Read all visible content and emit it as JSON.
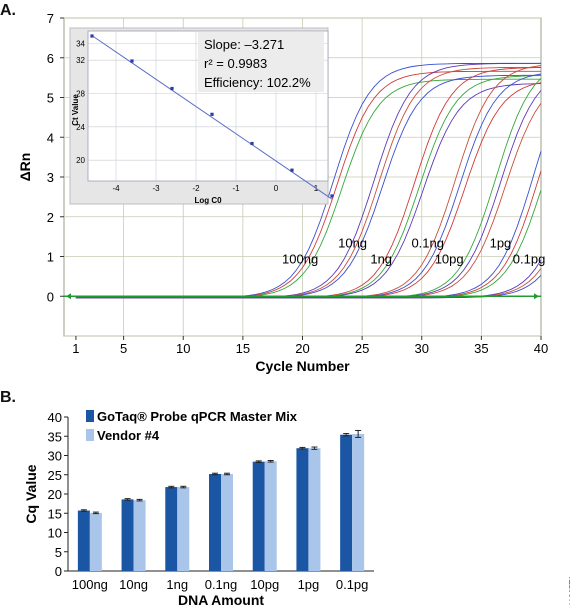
{
  "figure": {
    "panel_a_label": "A.",
    "panel_b_label": "B.",
    "figure_id": "11865TA"
  },
  "chart_data": [
    {
      "type": "line",
      "panel": "A",
      "xlabel": "Cycle Number",
      "ylabel": "ΔRn",
      "xlim": [
        0,
        40
      ],
      "ylim": [
        -1,
        7
      ],
      "xticks": [
        1,
        5,
        10,
        15,
        20,
        25,
        30,
        35,
        40
      ],
      "yticks": [
        0,
        1,
        2,
        3,
        4,
        5,
        6,
        7
      ],
      "grid": true,
      "annotations": [
        {
          "text": "100ng",
          "x": 19.8,
          "y": 0.83
        },
        {
          "text": "10ng",
          "x": 24.2,
          "y": 1.23
        },
        {
          "text": "1ng",
          "x": 26.6,
          "y": 0.83
        },
        {
          "text": "0.1ng",
          "x": 30.5,
          "y": 1.23
        },
        {
          "text": "10pg",
          "x": 32.3,
          "y": 0.83
        },
        {
          "text": "1pg",
          "x": 36.6,
          "y": 1.23
        },
        {
          "text": "0.1pg",
          "x": 39.0,
          "y": 0.83
        }
      ],
      "series": [
        {
          "label": "100ng",
          "midpoints": [
            22.6,
            22.9,
            23.3
          ],
          "plateaus": [
            5.9,
            5.7,
            5.5
          ]
        },
        {
          "label": "10ng",
          "midpoints": [
            26.0,
            26.4,
            26.7
          ],
          "plateaus": [
            5.9,
            5.8,
            5.6
          ]
        },
        {
          "label": "1ng",
          "midpoints": [
            29.4,
            29.8,
            30.1
          ],
          "plateaus": [
            5.8,
            5.6,
            5.4
          ]
        },
        {
          "label": "0.1ng",
          "midpoints": [
            32.8,
            33.2,
            33.6
          ],
          "plateaus": [
            5.9,
            5.7,
            5.5
          ]
        },
        {
          "label": "10pg",
          "midpoints": [
            36.2,
            36.6,
            37.0
          ],
          "plateaus": [
            6.0,
            5.8,
            5.6
          ]
        },
        {
          "label": "1pg",
          "midpoints": [
            39.4,
            39.8,
            40.2
          ],
          "plateaus": [
            6.2,
            6.0,
            5.8
          ]
        },
        {
          "label": "0.1pg",
          "midpoints": [
            42.7,
            43.1,
            43.5
          ],
          "plateaus": [
            6.4,
            6.2,
            6.0
          ]
        }
      ],
      "line_colors": [
        "#3a4fcf",
        "#d03a3a",
        "#34a83a",
        "#5a3ab8",
        "#c9503a"
      ],
      "baseline_color": "#1f9b2f",
      "inset": {
        "type": "scatter",
        "xlabel": "Log C0",
        "ylabel": "Ct Value",
        "xlim": [
          -4.7,
          1.3
        ],
        "ylim": [
          17.5,
          35.5
        ],
        "xticks": [
          -4,
          -3,
          -2,
          -1,
          0,
          1
        ],
        "yticks": [
          20,
          24,
          28,
          32,
          34
        ],
        "x": [
          -4.6,
          -3.6,
          -2.6,
          -1.6,
          -0.6,
          0.4,
          1.4
        ],
        "y": [
          34.9,
          31.9,
          28.6,
          25.5,
          22.0,
          18.8,
          15.7
        ],
        "fit": {
          "slope": -3.271,
          "intercept": 19.9
        },
        "stats": [
          "Slope: –3.271",
          "r² = 0.9983",
          "Efficiency: 102.2%"
        ],
        "point_color": "#2a3bb0",
        "fit_color": "#5b6fc8"
      }
    },
    {
      "type": "bar",
      "panel": "B",
      "xlabel": "DNA Amount",
      "ylabel": "Cq Value",
      "categories": [
        "100ng",
        "10ng",
        "1ng",
        "0.1ng",
        "10pg",
        "1pg",
        "0.1pg"
      ],
      "ylim": [
        0,
        40
      ],
      "yticks": [
        0,
        5,
        10,
        15,
        20,
        25,
        30,
        35,
        40
      ],
      "legend_position": "top-left",
      "series": [
        {
          "name": "GoTaq® Probe qPCR Master Mix",
          "color": "#1b56a4",
          "values": [
            15.7,
            18.6,
            21.8,
            25.2,
            28.4,
            31.9,
            35.4
          ],
          "errors": [
            0.2,
            0.2,
            0.2,
            0.2,
            0.2,
            0.2,
            0.3
          ]
        },
        {
          "name": "Vendor #4",
          "color": "#a9c6ea",
          "values": [
            15.1,
            18.4,
            21.8,
            25.2,
            28.5,
            31.9,
            35.6
          ],
          "errors": [
            0.2,
            0.2,
            0.2,
            0.2,
            0.2,
            0.3,
            0.9
          ]
        }
      ]
    }
  ]
}
